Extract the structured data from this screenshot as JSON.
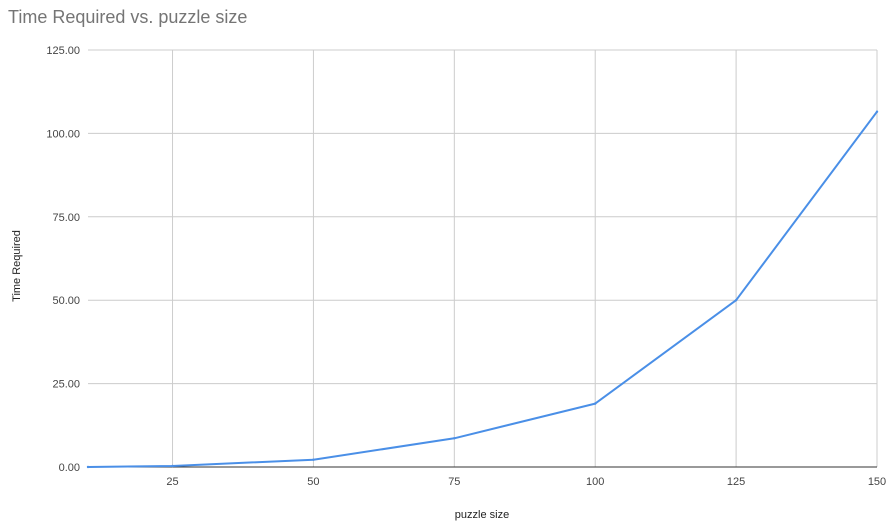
{
  "chart_data": {
    "type": "line",
    "title": "Time Required vs. puzzle size",
    "xlabel": "puzzle size",
    "ylabel": "Time Required",
    "xlim": [
      10,
      150
    ],
    "ylim": [
      0,
      125
    ],
    "x_ticks": [
      25,
      50,
      75,
      100,
      125,
      150
    ],
    "x_tick_labels": [
      "25",
      "50",
      "75",
      "100",
      "125",
      "150"
    ],
    "y_ticks": [
      0,
      25,
      50,
      75,
      100,
      125
    ],
    "y_tick_labels": [
      "0.00",
      "25.00",
      "50.00",
      "75.00",
      "100.00",
      "125.00"
    ],
    "grid": true,
    "series": [
      {
        "color": "#4a8fe7",
        "x": [
          10,
          25,
          50,
          75,
          100,
          125,
          150
        ],
        "y": [
          0.0,
          0.3,
          2.2,
          8.6,
          19.0,
          50.0,
          106.5
        ]
      }
    ]
  }
}
